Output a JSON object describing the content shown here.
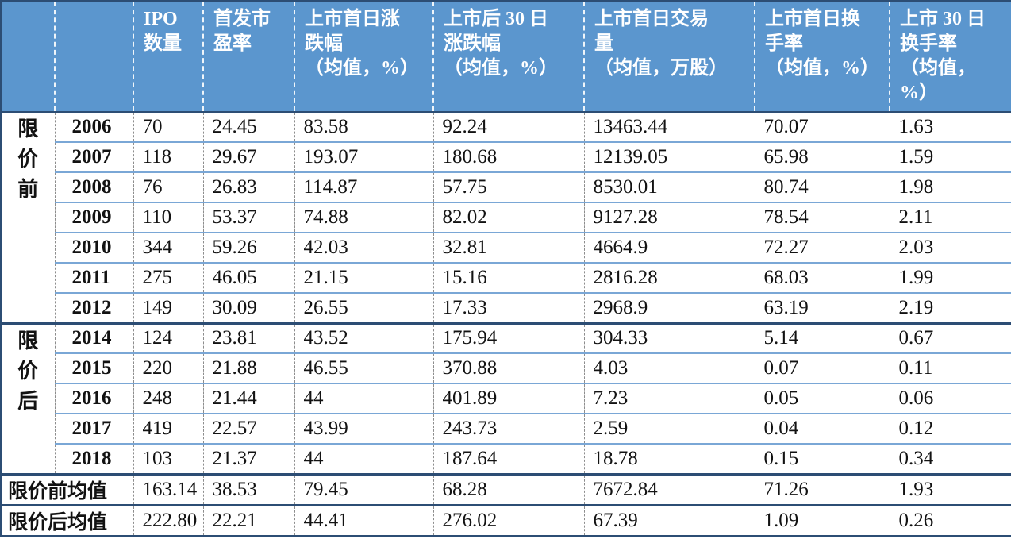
{
  "table": {
    "header": {
      "corner_group": "",
      "corner_year": "",
      "columns": [
        "IPO\n数量",
        "首发市\n盈率",
        "上市首日涨\n跌幅\n（均值，%）",
        "上市后 30 日\n涨跌幅\n（均值，%）",
        "上市首日交易\n量\n（均值，万股）",
        "上市首日换\n手率\n（均值，%）",
        "上市 30 日\n换手率\n（均值，\n%）"
      ]
    },
    "groups": [
      {
        "label": "限\n价\n前",
        "label_text": "限价前",
        "rows": [
          {
            "year": "2006",
            "values": [
              "70",
              "24.45",
              "83.58",
              "92.24",
              "13463.44",
              "70.07",
              "1.63"
            ]
          },
          {
            "year": "2007",
            "values": [
              "118",
              "29.67",
              "193.07",
              "180.68",
              "12139.05",
              "65.98",
              "1.59"
            ]
          },
          {
            "year": "2008",
            "values": [
              "76",
              "26.83",
              "114.87",
              "57.75",
              "8530.01",
              "80.74",
              "1.98"
            ]
          },
          {
            "year": "2009",
            "values": [
              "110",
              "53.37",
              "74.88",
              "82.02",
              "9127.28",
              "78.54",
              "2.11"
            ]
          },
          {
            "year": "2010",
            "values": [
              "344",
              "59.26",
              "42.03",
              "32.81",
              "4664.9",
              "72.27",
              "2.03"
            ]
          },
          {
            "year": "2011",
            "values": [
              "275",
              "46.05",
              "21.15",
              "15.16",
              "2816.28",
              "68.03",
              "1.99"
            ]
          },
          {
            "year": "2012",
            "values": [
              "149",
              "30.09",
              "26.55",
              "17.33",
              "2968.9",
              "63.19",
              "2.19"
            ]
          }
        ]
      },
      {
        "label": "限\n价\n后",
        "label_text": "限价后",
        "rows": [
          {
            "year": "2014",
            "values": [
              "124",
              "23.81",
              "43.52",
              "175.94",
              "304.33",
              "5.14",
              "0.67"
            ]
          },
          {
            "year": "2015",
            "values": [
              "220",
              "21.88",
              "46.55",
              "370.88",
              "4.03",
              "0.07",
              "0.11"
            ]
          },
          {
            "year": "2016",
            "values": [
              "248",
              "21.44",
              "44",
              "401.89",
              "7.23",
              "0.05",
              "0.06"
            ]
          },
          {
            "year": "2017",
            "values": [
              "419",
              "22.57",
              "43.99",
              "243.73",
              "2.59",
              "0.04",
              "0.12"
            ]
          },
          {
            "year": "2018",
            "values": [
              "103",
              "21.37",
              "44",
              "187.64",
              "18.78",
              "0.15",
              "0.34"
            ]
          }
        ]
      }
    ],
    "summary": [
      {
        "label": "限价前均值",
        "values": [
          "163.14",
          "38.53",
          "79.45",
          "68.28",
          "7672.84",
          "71.26",
          "1.93"
        ]
      },
      {
        "label": "限价后均值",
        "values": [
          "222.80",
          "22.21",
          "44.41",
          "276.02",
          "67.39",
          "1.09",
          "0.26"
        ]
      }
    ]
  },
  "colors": {
    "header_bg": "#5b96ce",
    "header_text": "#ffffff",
    "row_rule": "#7aa7d6",
    "dark_rule": "#2c4d74",
    "column_dash": "#8d8d8d"
  }
}
